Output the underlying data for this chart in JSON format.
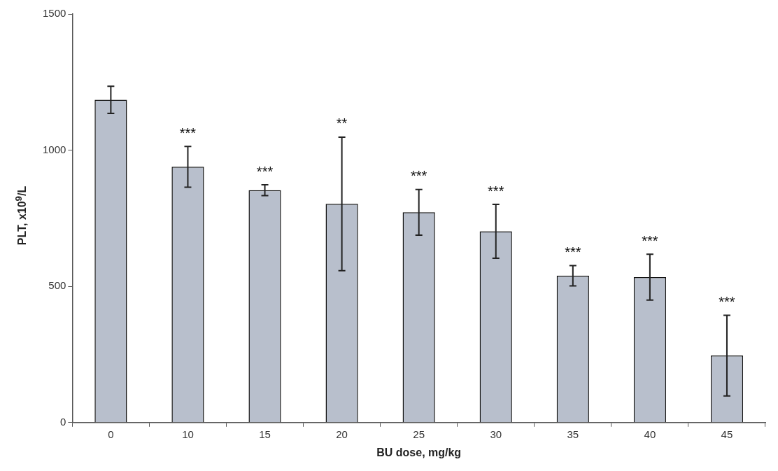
{
  "chart_data": {
    "type": "bar",
    "xlabel": "BU dose, mg/kg",
    "ylabel": "PLT, x10$^{9}$/L",
    "categories": [
      "0",
      "10",
      "15",
      "20",
      "25",
      "30",
      "35",
      "40",
      "45"
    ],
    "values": [
      1185,
      939,
      853,
      803,
      772,
      702,
      539,
      534,
      246
    ],
    "errors": [
      50,
      75,
      20,
      245,
      84,
      99,
      37,
      84,
      148
    ],
    "color": "#b8bfcc",
    "ylim": [
      0,
      1500
    ],
    "yticks": [
      0,
      500,
      1000,
      1500
    ],
    "grid": false,
    "legend": false,
    "annotations": [
      {
        "text": "***",
        "x": "10",
        "y": 1014
      },
      {
        "text": "***",
        "x": "15",
        "y": 873
      },
      {
        "text": "**",
        "x": "20",
        "y": 1048
      },
      {
        "text": "***",
        "x": "25",
        "y": 856
      },
      {
        "text": "***",
        "x": "30",
        "y": 801
      },
      {
        "text": "***",
        "x": "35",
        "y": 576
      },
      {
        "text": "***",
        "x": "40",
        "y": 618
      },
      {
        "text": "***",
        "x": "45",
        "y": 394
      }
    ]
  }
}
